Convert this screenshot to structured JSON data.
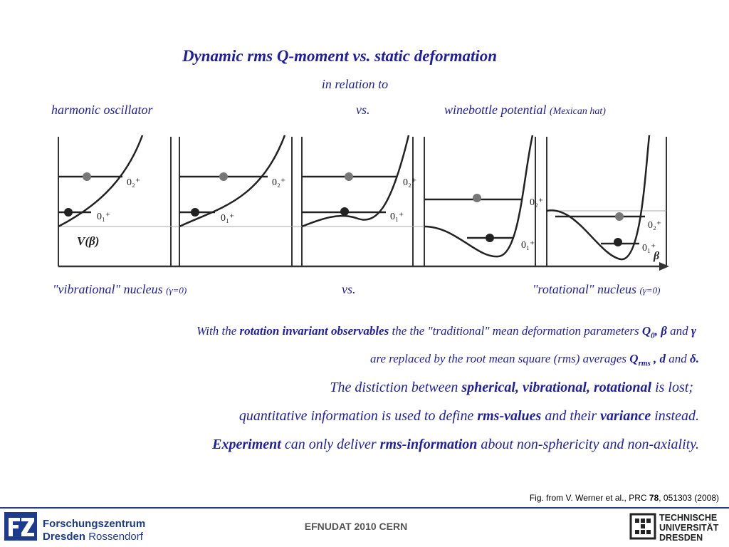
{
  "title": "Dynamic rms Q-moment vs. static deformation",
  "subtitle": "in relation to",
  "header": {
    "left": "harmonic oscillator",
    "middle": "vs.",
    "right": "winebottle potential",
    "right_note": "(Mexican hat)"
  },
  "figure": {
    "axis_label": "V(β)",
    "beta_label": "β",
    "state_upper": "0₂⁺",
    "state_lower": "0₁⁺"
  },
  "nucleus": {
    "left": "\"vibrational\" nucleus",
    "left_note": "(γ=0)",
    "middle": "vs.",
    "right": "\"rotational\" nucleus",
    "right_note": "(γ=0)"
  },
  "text": {
    "p1_a": "With the ",
    "p1_b": "rotation invariant observables",
    "p1_c": " the the \"traditional\" mean deformation parameters ",
    "p1_q0": "Q",
    "p1_q0_sub": "0",
    "p1_comma": ", ",
    "p1_beta": "β",
    "p1_and": " and ",
    "p1_gamma": "γ",
    "p2_a": "are replaced by the root mean square (rms) averages ",
    "p2_q": "Q",
    "p2_q_sub": "rms",
    "p2_comma": " , ",
    "p2_d": "d",
    "p2_and": " and ",
    "p2_delta": "δ.",
    "p3_a": "The distiction between ",
    "p3_b": "spherical, vibrational, rotational",
    "p3_c": " is lost;",
    "p4_a": "quantitative information is used to define ",
    "p4_b": "rms-values",
    "p4_c": " and their ",
    "p4_d": "variance",
    "p4_e": " instead.",
    "p5_a": "Experiment",
    "p5_b": " can only deliver ",
    "p5_c": "rms-information",
    "p5_d": " about non-sphericity and non-axiality."
  },
  "figure_reference": {
    "prefix": "Fig. from V. Werner et al., PRC ",
    "volume": "78",
    "suffix": ", 051303 (2008)"
  },
  "footer": {
    "center": "EFNUDAT 2010 CERN",
    "fz_line1": "Forschungszentrum",
    "fz_line2a": "Dresden",
    "fz_line2b": " Rossendorf",
    "tu_line1": "TECHNISCHE",
    "tu_line2": "UNIVERSITÄT",
    "tu_line3": "DRESDEN"
  },
  "colors": {
    "text_blue": "#1f1f9e",
    "rule_blue": "#2a3b8f",
    "fz_blue": "#1d3b8c"
  }
}
